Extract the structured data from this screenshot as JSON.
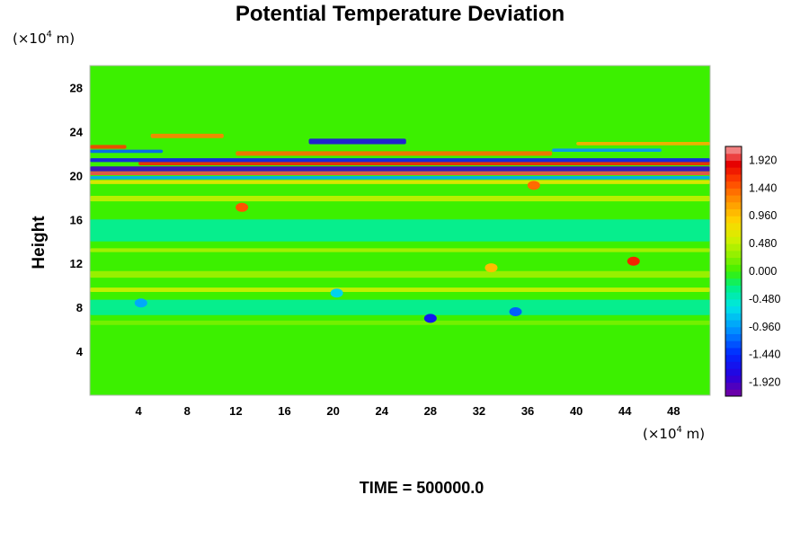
{
  "chart_data": {
    "type": "heatmap",
    "title": "Potential Temperature Deviation",
    "xlabel": "",
    "ylabel": "Height",
    "x_unit": "(×10⁴ m)",
    "y_unit": "(×10⁴ m)",
    "x_unit_base": "(×10",
    "x_unit_exp": "4",
    "x_unit_tail": " m)",
    "y_unit_base": "(×10",
    "y_unit_exp": "4",
    "y_unit_tail": " m)",
    "xlim": [
      0,
      51
    ],
    "ylim": [
      0,
      30
    ],
    "x_ticks": [
      4,
      8,
      12,
      16,
      20,
      24,
      28,
      32,
      36,
      40,
      44,
      48
    ],
    "y_ticks": [
      4,
      8,
      12,
      16,
      20,
      24,
      28
    ],
    "colorbar": {
      "min": -2.16,
      "max": 2.16,
      "step": 0.12,
      "labels": [
        "1.920",
        "1.440",
        "0.960",
        "0.480",
        "0.000",
        "-0.480",
        "-0.960",
        "-1.440",
        "-1.920"
      ],
      "label_values": [
        1.92,
        1.44,
        0.96,
        0.48,
        0.0,
        -0.48,
        -0.96,
        -1.44,
        -1.92
      ]
    },
    "bands": [
      {
        "y": 20.6,
        "thickness": 0.45,
        "x_start": 0,
        "x_end": 51,
        "value": -1.9
      },
      {
        "y": 20.2,
        "thickness": 0.35,
        "x_start": 0,
        "x_end": 51,
        "value": 2.0
      },
      {
        "y": 21.1,
        "thickness": 0.35,
        "x_start": 4,
        "x_end": 51,
        "value": 1.7
      },
      {
        "y": 21.4,
        "thickness": 0.35,
        "x_start": 0,
        "x_end": 51,
        "value": -1.6
      },
      {
        "y": 19.8,
        "thickness": 0.3,
        "x_start": 0,
        "x_end": 51,
        "value": -0.9
      },
      {
        "y": 19.4,
        "thickness": 0.35,
        "x_start": 0,
        "x_end": 51,
        "value": 0.7
      },
      {
        "y": 22.0,
        "thickness": 0.4,
        "x_start": 12,
        "x_end": 38,
        "value": 1.4
      },
      {
        "y": 22.6,
        "thickness": 0.35,
        "x_start": 0,
        "x_end": 3,
        "value": 1.6
      },
      {
        "y": 22.2,
        "thickness": 0.3,
        "x_start": 0,
        "x_end": 6,
        "value": -1.2
      },
      {
        "y": 23.1,
        "thickness": 0.5,
        "x_start": 18,
        "x_end": 26,
        "value": -1.7
      },
      {
        "y": 23.6,
        "thickness": 0.4,
        "x_start": 5,
        "x_end": 11,
        "value": 1.3
      },
      {
        "y": 22.9,
        "thickness": 0.3,
        "x_start": 40,
        "x_end": 51,
        "value": 1.1
      },
      {
        "y": 22.3,
        "thickness": 0.3,
        "x_start": 38,
        "x_end": 47,
        "value": -1.0
      },
      {
        "y": 17.9,
        "thickness": 0.5,
        "x_start": 0,
        "x_end": 51,
        "value": 0.5
      },
      {
        "y": 15.0,
        "thickness": 2.0,
        "x_start": 0,
        "x_end": 51,
        "value": -0.35
      },
      {
        "y": 13.2,
        "thickness": 0.35,
        "x_start": 0,
        "x_end": 51,
        "value": 0.4
      },
      {
        "y": 11.0,
        "thickness": 0.6,
        "x_start": 0,
        "x_end": 51,
        "value": 0.35
      },
      {
        "y": 9.6,
        "thickness": 0.4,
        "x_start": 0,
        "x_end": 51,
        "value": 0.55
      },
      {
        "y": 8.0,
        "thickness": 1.4,
        "x_start": 0,
        "x_end": 51,
        "value": -0.35
      },
      {
        "y": 6.6,
        "thickness": 0.4,
        "x_start": 0,
        "x_end": 51,
        "value": 0.2
      }
    ],
    "spots": [
      {
        "x": 28,
        "y": 7.0,
        "value": -1.6
      },
      {
        "x": 35,
        "y": 7.6,
        "value": -1.2
      },
      {
        "x": 44.7,
        "y": 12.2,
        "value": 1.7
      },
      {
        "x": 12.5,
        "y": 17.1,
        "value": 1.5
      },
      {
        "x": 4.2,
        "y": 8.4,
        "value": -0.9
      },
      {
        "x": 20.3,
        "y": 9.3,
        "value": -0.7
      },
      {
        "x": 33,
        "y": 11.6,
        "value": 1.0
      },
      {
        "x": 36.5,
        "y": 19.1,
        "value": 1.4
      }
    ]
  },
  "timestamp_label": "TIME = 500000.0"
}
